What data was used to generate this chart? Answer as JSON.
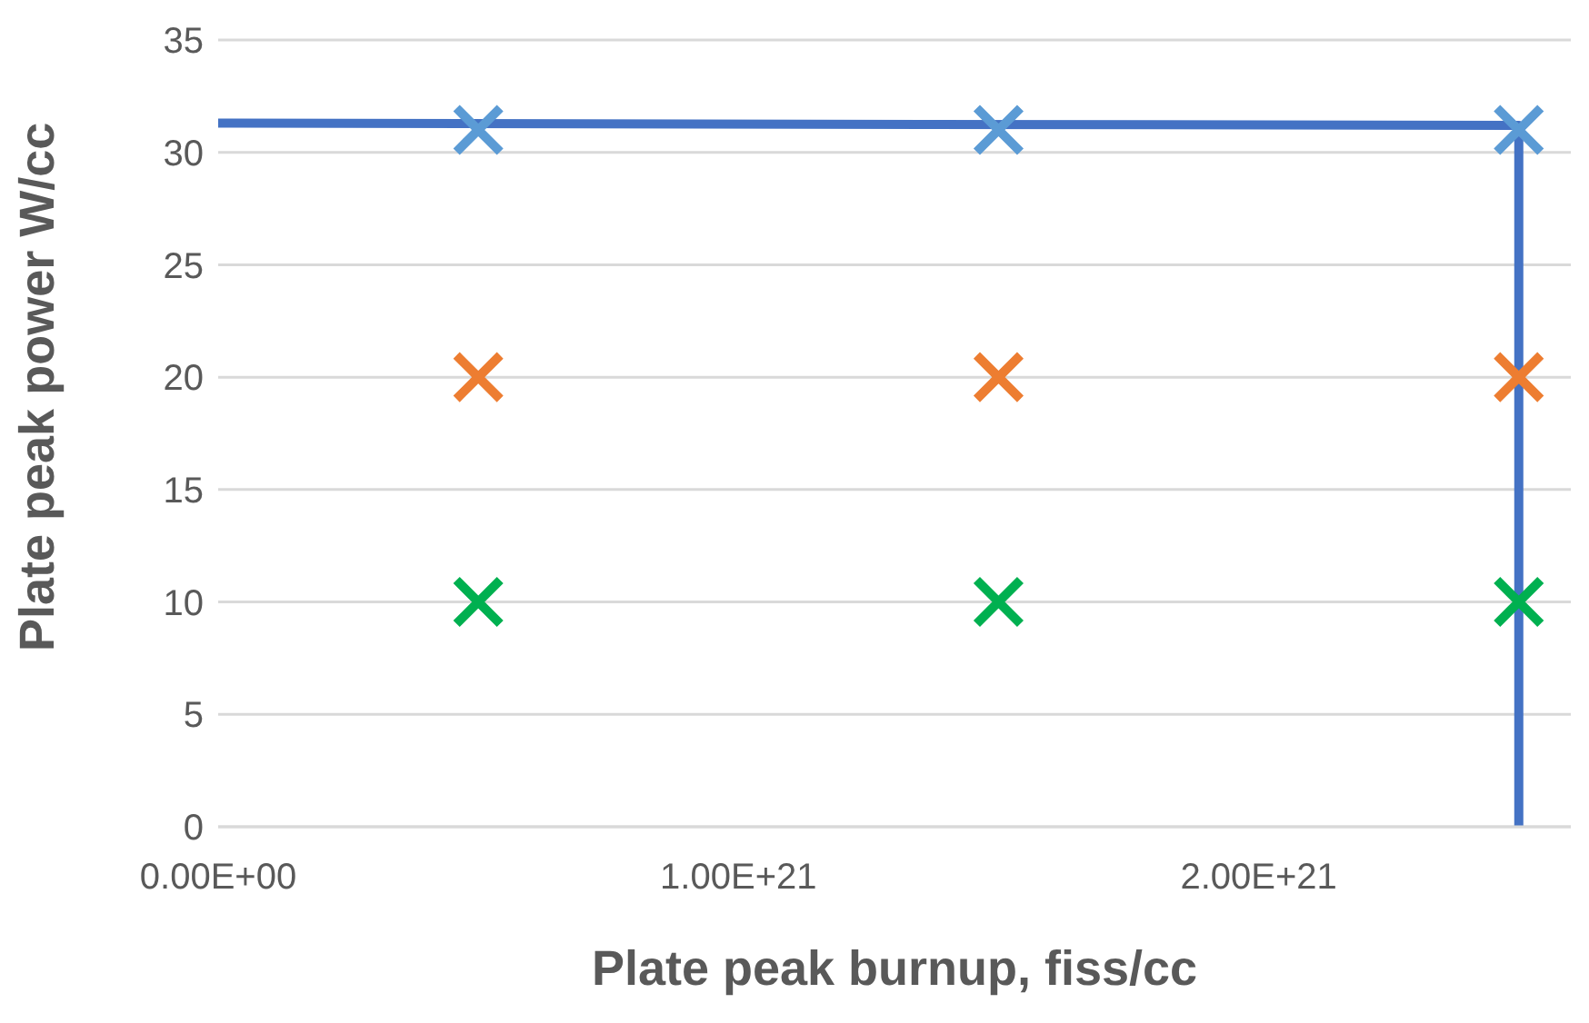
{
  "chart_data": {
    "type": "scatter",
    "xlabel": "Plate peak burnup, fiss/cc",
    "ylabel": "Plate peak power  W/cc",
    "xlim": [
      0,
      2.6e+21
    ],
    "xticks": [
      {
        "value": 0,
        "label": "0.00E+00"
      },
      {
        "value": 1e+21,
        "label": "1.00E+21"
      },
      {
        "value": 2e+21,
        "label": "2.00E+21"
      }
    ],
    "ylim": [
      0,
      35
    ],
    "yticks": [
      0,
      5,
      10,
      15,
      20,
      25,
      30,
      35
    ],
    "grid": "y",
    "series": [
      {
        "type": "line",
        "color": "#4472c4",
        "marker": "none",
        "x": [
          0,
          2.5e+21,
          2.5e+21
        ],
        "values": [
          31.3,
          31.2,
          0
        ]
      },
      {
        "color": "#5b9bd5",
        "marker": "cross",
        "x": [
          5e+20,
          1.5e+21,
          2.5e+21
        ],
        "values": [
          31,
          31,
          31
        ]
      },
      {
        "color": "#ed7d31",
        "marker": "cross",
        "x": [
          5e+20,
          1.5e+21,
          2.5e+21
        ],
        "values": [
          20,
          20,
          20
        ]
      },
      {
        "color": "#00b050",
        "marker": "cross",
        "x": [
          5e+20,
          1.5e+21,
          2.5e+21
        ],
        "values": [
          10,
          10,
          10
        ]
      }
    ]
  }
}
